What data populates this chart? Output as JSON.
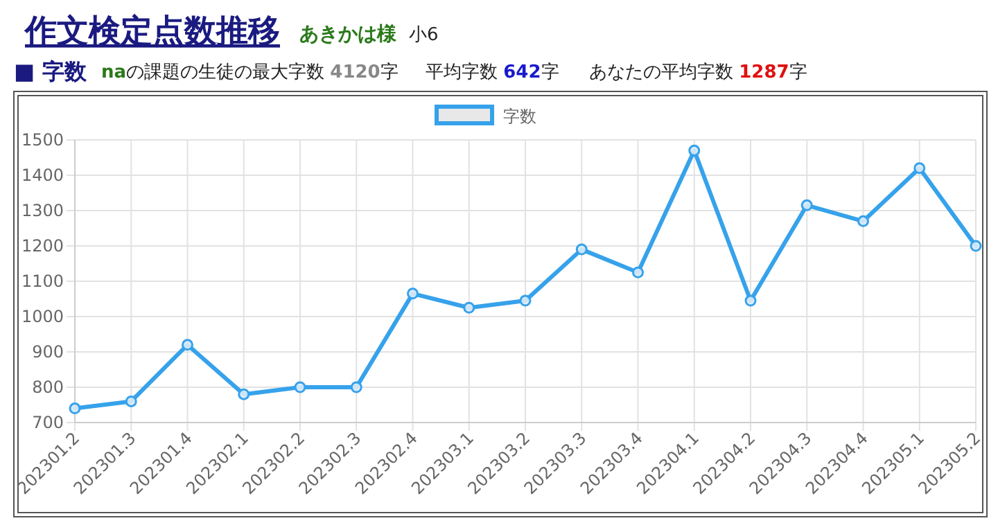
{
  "chart_data": {
    "type": "line",
    "title": "作文検定点数推移",
    "subtitle": "あきかは様",
    "annotations": [
      "小6",
      "■ 字数",
      "naの課題の生徒の最大字数 4120字",
      "平均字数 642字",
      "あなたの平均字数 1287字"
    ],
    "categories": [
      "202301.2",
      "202301.3",
      "202301.4",
      "202302.1",
      "202302.2",
      "202302.3",
      "202302.4",
      "202303.1",
      "202303.2",
      "202303.3",
      "202303.4",
      "202304.1",
      "202304.2",
      "202304.3",
      "202304.4",
      "202305.1",
      "202305.2"
    ],
    "series": [
      {
        "name": "字数",
        "color": "#36a2eb",
        "values": [
          740,
          760,
          920,
          780,
          800,
          800,
          1065,
          1025,
          1045,
          1190,
          1125,
          1470,
          1045,
          1315,
          1270,
          1420,
          1200
        ]
      }
    ],
    "ylim": [
      700,
      1500
    ],
    "yticks": [
      700,
      800,
      900,
      1000,
      1100,
      1200,
      1300,
      1400,
      1500
    ],
    "grid": true,
    "legend": "top",
    "marker": "circle",
    "line_style": "solid"
  }
}
